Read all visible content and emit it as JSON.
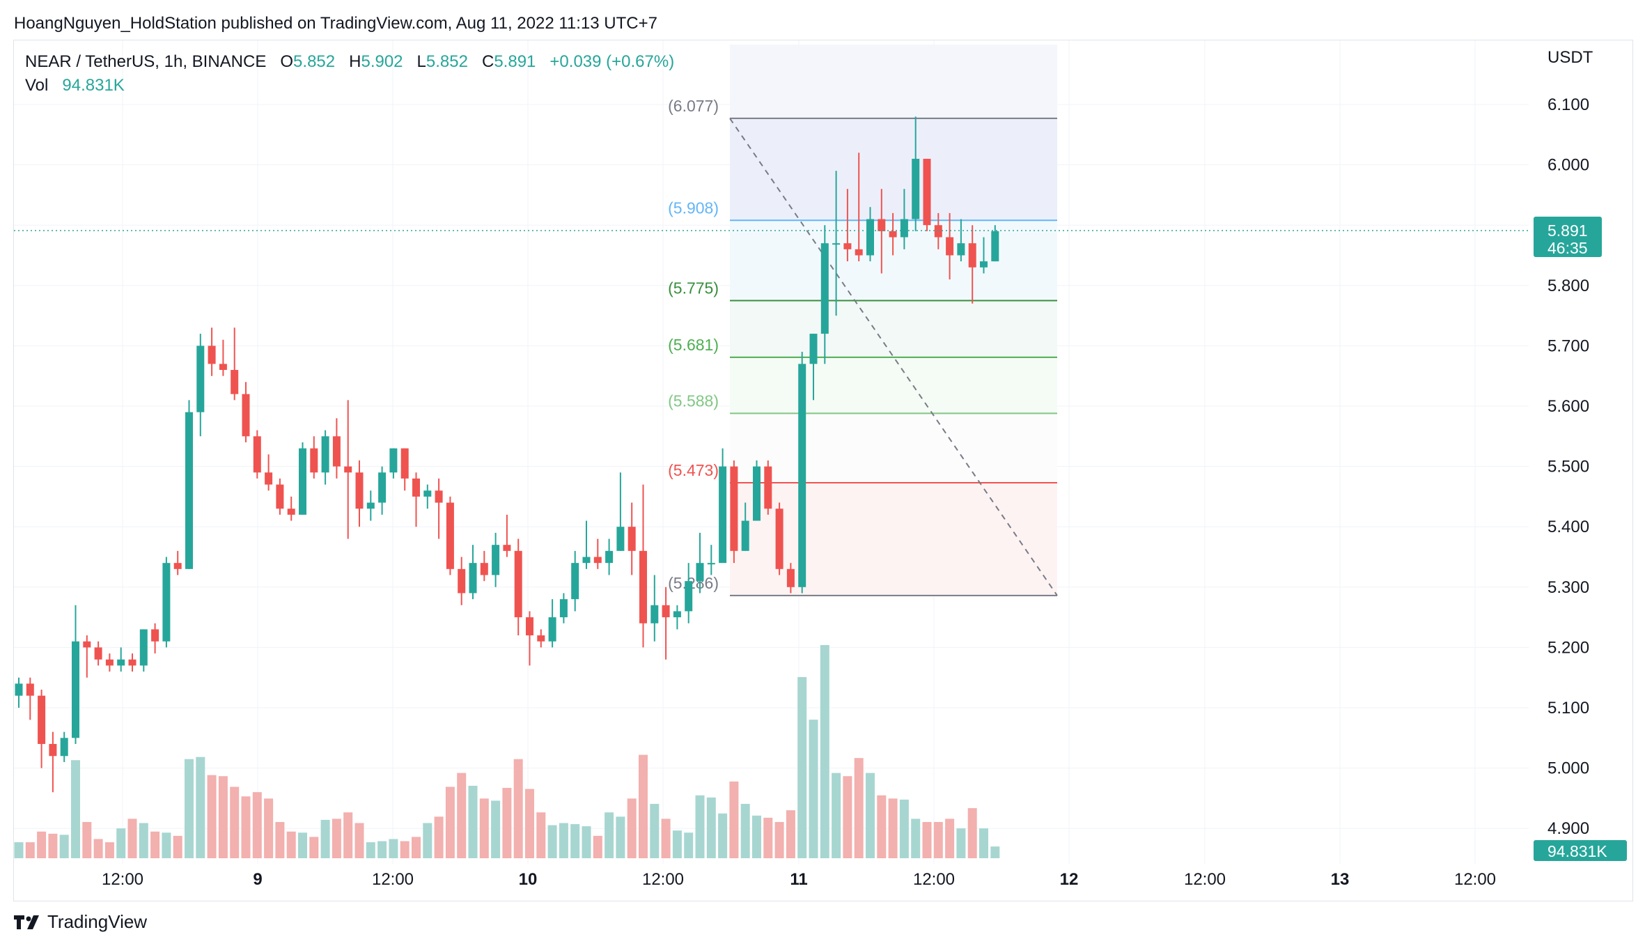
{
  "header": {
    "publisher": "HoangNguyen_HoldStation published on TradingView.com, Aug 11, 2022 11:13 UTC+7"
  },
  "legend": {
    "symbol": "NEAR / TetherUS, 1h, BINANCE",
    "open_label": "O",
    "open": "5.852",
    "high_label": "H",
    "high": "5.902",
    "low_label": "L",
    "low": "5.852",
    "close_label": "C",
    "close": "5.891",
    "change": "+0.039 (+0.67%)",
    "vol_label": "Vol",
    "vol": "94.831K"
  },
  "footer": {
    "brand": "TradingView",
    "logo_icon": "tradingview-logo-icon"
  },
  "chart_data": {
    "type": "candlestick",
    "currency": "USDT",
    "ylim": [
      4.84,
      6.2
    ],
    "y_ticks": [
      "6.100",
      "6.000",
      "5.900",
      "5.800",
      "5.700",
      "5.600",
      "5.500",
      "5.400",
      "5.300",
      "5.200",
      "5.100",
      "5.000",
      "4.900"
    ],
    "x_ticks": [
      "12:00",
      "9",
      "12:00",
      "10",
      "12:00",
      "11",
      "12:00",
      "12",
      "12:00",
      "13",
      "12:00"
    ],
    "x_ticks_bold": [
      "9",
      "10",
      "11",
      "12",
      "13"
    ],
    "last_price": {
      "value": 5.891,
      "label": "5.891",
      "countdown": "46:35"
    },
    "last_volume_label": "94.831K",
    "fib_levels": [
      {
        "value": 6.077,
        "label": "(6.077)",
        "color": "#787b86"
      },
      {
        "value": 5.908,
        "label": "(5.908)",
        "color": "#64b5f6"
      },
      {
        "value": 5.775,
        "label": "(5.775)",
        "color": "#388e3c"
      },
      {
        "value": 5.681,
        "label": "(5.681)",
        "color": "#4caf50"
      },
      {
        "value": 5.588,
        "label": "(5.588)",
        "color": "#81c784"
      },
      {
        "value": 5.473,
        "label": "(5.473)",
        "color": "#ef5350"
      },
      {
        "value": 5.286,
        "label": "(5.286)",
        "color": "#787b86"
      }
    ],
    "colors": {
      "up": "#26a69a",
      "down": "#ef5350",
      "vol_up": "#a7d6d1",
      "vol_down": "#f2b0ae"
    },
    "candles_first_hour": "Aug 8 03:00",
    "candles": [
      [
        5.12,
        5.15,
        5.1,
        5.14
      ],
      [
        5.14,
        5.15,
        5.08,
        5.12
      ],
      [
        5.12,
        5.13,
        5.0,
        5.04
      ],
      [
        5.04,
        5.06,
        4.96,
        5.02
      ],
      [
        5.02,
        5.06,
        5.01,
        5.05
      ],
      [
        5.05,
        5.27,
        5.04,
        5.21
      ],
      [
        5.21,
        5.22,
        5.15,
        5.2
      ],
      [
        5.2,
        5.21,
        5.17,
        5.18
      ],
      [
        5.18,
        5.19,
        5.16,
        5.17
      ],
      [
        5.17,
        5.2,
        5.16,
        5.18
      ],
      [
        5.18,
        5.19,
        5.16,
        5.17
      ],
      [
        5.17,
        5.23,
        5.16,
        5.23
      ],
      [
        5.23,
        5.24,
        5.19,
        5.21
      ],
      [
        5.21,
        5.35,
        5.2,
        5.34
      ],
      [
        5.34,
        5.36,
        5.32,
        5.33
      ],
      [
        5.33,
        5.61,
        5.33,
        5.59
      ],
      [
        5.59,
        5.72,
        5.55,
        5.7
      ],
      [
        5.7,
        5.73,
        5.65,
        5.67
      ],
      [
        5.67,
        5.71,
        5.65,
        5.66
      ],
      [
        5.66,
        5.73,
        5.61,
        5.62
      ],
      [
        5.62,
        5.64,
        5.54,
        5.55
      ],
      [
        5.55,
        5.56,
        5.48,
        5.49
      ],
      [
        5.49,
        5.52,
        5.46,
        5.47
      ],
      [
        5.47,
        5.48,
        5.42,
        5.43
      ],
      [
        5.43,
        5.45,
        5.41,
        5.42
      ],
      [
        5.42,
        5.54,
        5.42,
        5.53
      ],
      [
        5.53,
        5.55,
        5.48,
        5.49
      ],
      [
        5.49,
        5.56,
        5.47,
        5.55
      ],
      [
        5.55,
        5.58,
        5.48,
        5.5
      ],
      [
        5.5,
        5.61,
        5.38,
        5.49
      ],
      [
        5.49,
        5.51,
        5.4,
        5.43
      ],
      [
        5.43,
        5.46,
        5.41,
        5.44
      ],
      [
        5.44,
        5.5,
        5.42,
        5.49
      ],
      [
        5.49,
        5.53,
        5.48,
        5.53
      ],
      [
        5.53,
        5.53,
        5.46,
        5.48
      ],
      [
        5.48,
        5.49,
        5.4,
        5.45
      ],
      [
        5.45,
        5.47,
        5.43,
        5.46
      ],
      [
        5.46,
        5.48,
        5.38,
        5.44
      ],
      [
        5.44,
        5.45,
        5.32,
        5.33
      ],
      [
        5.33,
        5.35,
        5.27,
        5.29
      ],
      [
        5.29,
        5.37,
        5.28,
        5.34
      ],
      [
        5.34,
        5.36,
        5.31,
        5.32
      ],
      [
        5.32,
        5.39,
        5.3,
        5.37
      ],
      [
        5.37,
        5.42,
        5.35,
        5.36
      ],
      [
        5.36,
        5.38,
        5.22,
        5.25
      ],
      [
        5.25,
        5.26,
        5.17,
        5.22
      ],
      [
        5.22,
        5.23,
        5.2,
        5.21
      ],
      [
        5.21,
        5.28,
        5.2,
        5.25
      ],
      [
        5.25,
        5.29,
        5.24,
        5.28
      ],
      [
        5.28,
        5.36,
        5.26,
        5.34
      ],
      [
        5.34,
        5.41,
        5.33,
        5.35
      ],
      [
        5.35,
        5.38,
        5.33,
        5.34
      ],
      [
        5.34,
        5.38,
        5.32,
        5.36
      ],
      [
        5.36,
        5.49,
        5.36,
        5.4
      ],
      [
        5.4,
        5.44,
        5.32,
        5.36
      ],
      [
        5.36,
        5.47,
        5.2,
        5.24
      ],
      [
        5.24,
        5.32,
        5.21,
        5.27
      ],
      [
        5.27,
        5.3,
        5.18,
        5.25
      ],
      [
        5.25,
        5.27,
        5.23,
        5.26
      ],
      [
        5.26,
        5.34,
        5.24,
        5.31
      ],
      [
        5.31,
        5.39,
        5.29,
        5.34
      ],
      [
        5.34,
        5.37,
        5.32,
        5.34
      ],
      [
        5.34,
        5.53,
        5.34,
        5.5
      ],
      [
        5.5,
        5.51,
        5.34,
        5.36
      ],
      [
        5.36,
        5.44,
        5.36,
        5.41
      ],
      [
        5.41,
        5.51,
        5.41,
        5.5
      ],
      [
        5.5,
        5.51,
        5.42,
        5.43
      ],
      [
        5.43,
        5.44,
        5.32,
        5.33
      ],
      [
        5.33,
        5.34,
        5.29,
        5.3
      ],
      [
        5.3,
        5.69,
        5.29,
        5.67
      ],
      [
        5.67,
        5.72,
        5.61,
        5.72
      ],
      [
        5.72,
        5.9,
        5.67,
        5.87
      ],
      [
        5.87,
        5.99,
        5.75,
        5.87
      ],
      [
        5.87,
        5.96,
        5.84,
        5.86
      ],
      [
        5.86,
        6.02,
        5.84,
        5.85
      ],
      [
        5.85,
        5.93,
        5.84,
        5.91
      ],
      [
        5.91,
        5.96,
        5.82,
        5.89
      ],
      [
        5.89,
        5.92,
        5.85,
        5.88
      ],
      [
        5.88,
        5.96,
        5.86,
        5.91
      ],
      [
        5.91,
        6.08,
        5.89,
        6.01
      ],
      [
        6.01,
        6.01,
        5.89,
        5.9
      ],
      [
        5.9,
        5.92,
        5.86,
        5.88
      ],
      [
        5.88,
        5.92,
        5.81,
        5.85
      ],
      [
        5.85,
        5.91,
        5.84,
        5.87
      ],
      [
        5.87,
        5.9,
        5.77,
        5.83
      ],
      [
        5.83,
        5.88,
        5.82,
        5.84
      ],
      [
        5.84,
        5.9,
        5.84,
        5.89
      ]
    ],
    "volumes": [
      1.5,
      1.5,
      2.5,
      2.3,
      2.2,
      9.2,
      3.4,
      1.8,
      1.5,
      2.8,
      3.7,
      3.3,
      2.5,
      2.4,
      2.1,
      9.3,
      9.5,
      7.8,
      7.7,
      6.7,
      5.8,
      6.2,
      5.6,
      3.4,
      2.5,
      2.4,
      2.0,
      3.6,
      3.7,
      4.3,
      3.3,
      1.5,
      1.6,
      1.8,
      1.6,
      2.0,
      3.3,
      3.9,
      6.7,
      8.0,
      6.8,
      5.6,
      5.4,
      6.6,
      9.3,
      6.5,
      4.3,
      3.1,
      3.3,
      3.2,
      3.0,
      2.1,
      4.3,
      3.9,
      5.6,
      9.7,
      5.1,
      3.7,
      2.6,
      2.4,
      5.9,
      5.7,
      4.2,
      7.2,
      5.1,
      4.0,
      3.8,
      3.4,
      4.5,
      17,
      13,
      20,
      8.0,
      7.7,
      9.4,
      8.0,
      5.9,
      5.6,
      5.5,
      3.7,
      3.4,
      3.4,
      3.7,
      2.8,
      4.7,
      2.8,
      1.1
    ]
  }
}
